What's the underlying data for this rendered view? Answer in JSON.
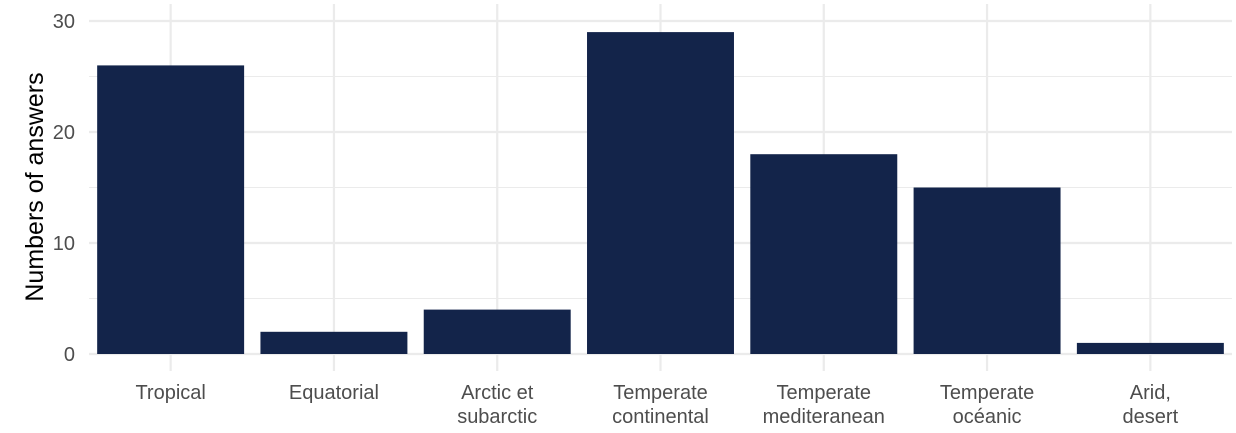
{
  "chart_data": {
    "type": "bar",
    "categories": [
      "Tropical",
      "Equatorial",
      "Arctic et subarctic",
      "Temperate continental",
      "Temperate mediteranean",
      "Temperate océanic",
      "Arid, desert"
    ],
    "category_lines": [
      [
        "Tropical"
      ],
      [
        "Equatorial"
      ],
      [
        "Arctic et",
        "subarctic"
      ],
      [
        "Temperate",
        "continental"
      ],
      [
        "Temperate",
        "mediteranean"
      ],
      [
        "Temperate",
        "océanic"
      ],
      [
        "Arid,",
        "desert"
      ]
    ],
    "values": [
      26,
      2,
      4,
      29,
      18,
      15,
      1
    ],
    "title": "",
    "xlabel": "",
    "ylabel": "Numbers of answers",
    "ylim": [
      0,
      30
    ],
    "yticks": [
      0,
      10,
      20,
      30
    ],
    "grid": true,
    "legend": "none",
    "bar_color": "#13244a",
    "grid_color": "#ebebeb",
    "tick_label_color": "#4d4d4d"
  }
}
